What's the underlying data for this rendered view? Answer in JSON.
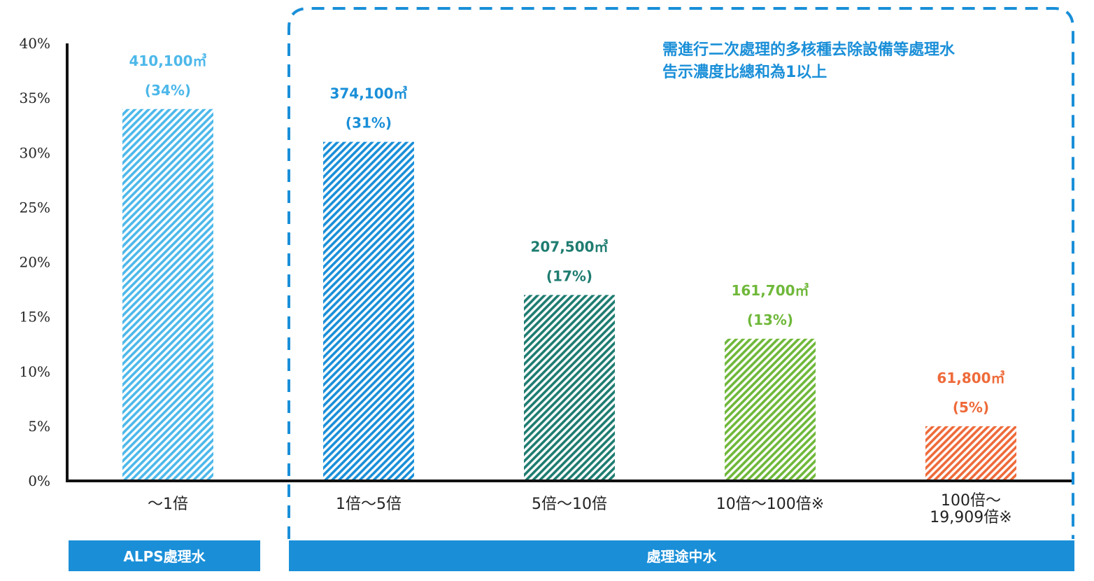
{
  "chart_data": {
    "type": "bar",
    "categories": [
      "～1倍",
      "1倍～5倍",
      "5倍～10倍",
      "10倍～100倍※",
      "100倍～\n19,909倍※"
    ],
    "values": [
      34,
      31,
      17,
      13,
      5
    ],
    "volume_labels": [
      "410,100㎥",
      "374,100㎥",
      "207,500㎥",
      "161,700㎥",
      "61,800㎥"
    ],
    "percent_labels": [
      "(34%)",
      "(31%)",
      "(17%)",
      "(13%)",
      "(5%)"
    ],
    "colors": [
      "#4db8ea",
      "#1a8fd8",
      "#1e7c70",
      "#6fb83a",
      "#ee6a3a"
    ],
    "ylim": [
      0,
      40
    ],
    "yticks": [
      "0%",
      "5%",
      "10%",
      "15%",
      "20%",
      "25%",
      "30%",
      "35%",
      "40%"
    ],
    "xlabel": "",
    "ylabel": "",
    "title": "",
    "annotation": [
      "需進行二次處理的多核種去除設備等處理水",
      "告示濃度比總和為1以上"
    ],
    "groups": [
      {
        "label": "ALPS處理水",
        "color": "#1a8fd8"
      },
      {
        "label": "處理途中水",
        "color": "#1a8fd8"
      }
    ],
    "highlight_box_color": "#1a8fd8"
  }
}
